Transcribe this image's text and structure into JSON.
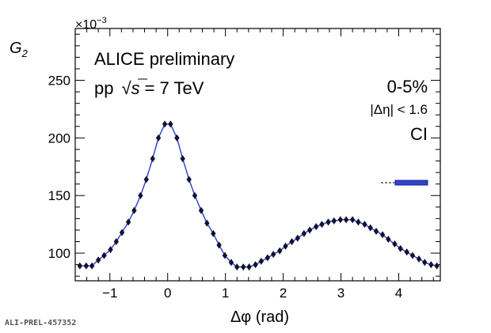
{
  "chart_data": {
    "type": "line",
    "xlabel": "Δφ (rad)",
    "ylabel": "G",
    "ylabel_sub": "2",
    "y_multiplier": "×10",
    "y_multiplier_exp": "−3",
    "xlim": [
      -1.6,
      4.72
    ],
    "ylim": [
      76,
      295
    ],
    "x_ticks": [
      -1,
      0,
      1,
      2,
      3,
      4
    ],
    "x_tick_labels": [
      "−1",
      "0",
      "1",
      "2",
      "3",
      "4"
    ],
    "y_ticks": [
      100,
      150,
      200,
      250
    ],
    "y_tick_labels": [
      "100",
      "150",
      "200",
      "250"
    ],
    "annotations": {
      "experiment": "ALICE preliminary",
      "system_prefix": "pp",
      "system_sqrt": "√",
      "system_s": "s",
      "system_energy": "= 7 TeV",
      "centrality": "0-5%",
      "eta_cut": "|Δη| < 1.6",
      "label": "CI"
    },
    "figure_id": "ALI-PREL-457352",
    "colors": {
      "line": "#2a3bd6",
      "markers": "#111133",
      "band_fill": "#3344cc"
    },
    "series": [
      {
        "x": [
          -1.52,
          -1.41,
          -1.31,
          -1.2,
          -1.1,
          -0.99,
          -0.89,
          -0.79,
          -0.68,
          -0.58,
          -0.47,
          -0.37,
          -0.26,
          -0.16,
          -0.05,
          0.05,
          0.16,
          0.26,
          0.37,
          0.47,
          0.58,
          0.68,
          0.79,
          0.89,
          0.99,
          1.1,
          1.2,
          1.31,
          1.41,
          1.52,
          1.62,
          1.73,
          1.83,
          1.94,
          2.04,
          2.15,
          2.25,
          2.36,
          2.46,
          2.57,
          2.67,
          2.78,
          2.88,
          2.99,
          3.09,
          3.2,
          3.3,
          3.41,
          3.51,
          3.61,
          3.72,
          3.82,
          3.93,
          4.03,
          4.14,
          4.24,
          4.35,
          4.45,
          4.56,
          4.66
        ],
        "y": [
          89,
          89,
          89,
          94,
          98,
          103,
          110,
          118,
          127,
          137,
          150,
          164,
          182,
          200,
          212,
          212,
          200,
          182,
          164,
          150,
          137,
          126,
          117,
          107,
          98,
          92,
          88,
          88,
          88,
          90,
          93,
          96,
          99,
          102,
          106,
          110,
          113,
          117,
          120,
          123,
          125,
          127,
          128,
          129,
          129,
          129,
          127,
          125,
          122,
          119,
          116,
          112,
          108,
          104,
          101,
          98,
          95,
          92,
          90,
          89
        ]
      }
    ]
  }
}
